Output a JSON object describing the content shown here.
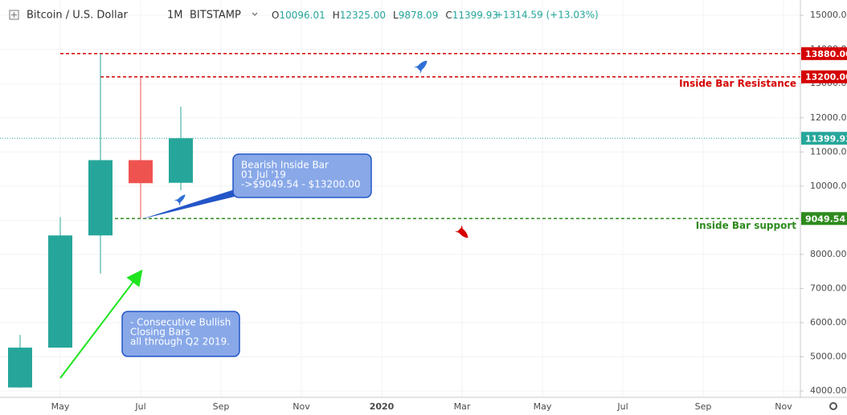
{
  "chart_data": {
    "type": "candlestick",
    "header": {
      "symbol": "Bitcoin / U.S. Dollar",
      "interval": "1M",
      "exchange": "BITSTAMP",
      "ohlc": [
        {
          "label": "O",
          "value": "10096.01"
        },
        {
          "label": "H",
          "value": "12325.00"
        },
        {
          "label": "L",
          "value": "9878.09"
        },
        {
          "label": "C",
          "value": "11399.93"
        }
      ],
      "change": "+1314.59 (+13.03%)"
    },
    "categories": [
      null,
      null,
      null,
      null,
      null
    ],
    "open": [
      4102,
      5269,
      8555,
      10760,
      10096.01
    ],
    "high": [
      5642,
      9090,
      13880,
      13200,
      12325
    ],
    "low": [
      4096,
      5350,
      7440,
      9049.54,
      9878.09
    ],
    "close": [
      5269,
      8555,
      10760,
      10085,
      11399.93
    ],
    "up_color": "#26a69a",
    "down_color": "#ef5350",
    "ylim": [
      3860,
      15450
    ],
    "yticks": [
      {
        "value": 4000,
        "label": "4000.00"
      },
      {
        "value": 5000,
        "label": "5000.00"
      },
      {
        "value": 6000,
        "label": "6000.00"
      },
      {
        "value": 7000,
        "label": "7000.00"
      },
      {
        "value": 8000,
        "label": "8000.00"
      },
      {
        "value": 9000,
        "label": "9000.00"
      },
      {
        "value": 10000,
        "label": "10000.00"
      },
      {
        "value": 11000,
        "label": "11000.00"
      },
      {
        "value": 12000,
        "label": "12000.00"
      },
      {
        "value": 13000,
        "label": "13000.00"
      },
      {
        "value": 14000,
        "label": "14000.00"
      },
      {
        "value": 15000,
        "label": "15000.00"
      }
    ],
    "xtick_labels": [
      "May",
      "Jul",
      "Sep",
      "Nov",
      "2020",
      "Mar",
      "May",
      "Jul",
      "Sep",
      "Nov"
    ],
    "grid": true,
    "levels": [
      {
        "value": 13880,
        "label": "13880.00",
        "color": "#d50000"
      },
      {
        "value": 13200,
        "label": "13200.00",
        "color": "#d50000",
        "name": "Inside Bar Resistance"
      },
      {
        "value": 11399.93,
        "label": "11399.93",
        "color": "#26a69a"
      },
      {
        "value": 9049.54,
        "label": "9049.54",
        "color": "#2e8b1e",
        "name": "Inside Bar support"
      }
    ],
    "callouts": [
      {
        "lines": [
          "Bearish Inside Bar",
          "01 Jul '19",
          "->$9049.54 - $13200.00"
        ]
      },
      {
        "lines": [
          "- Consecutive Bullish",
          "Closing Bars",
          "all through Q2 2019."
        ]
      }
    ]
  }
}
